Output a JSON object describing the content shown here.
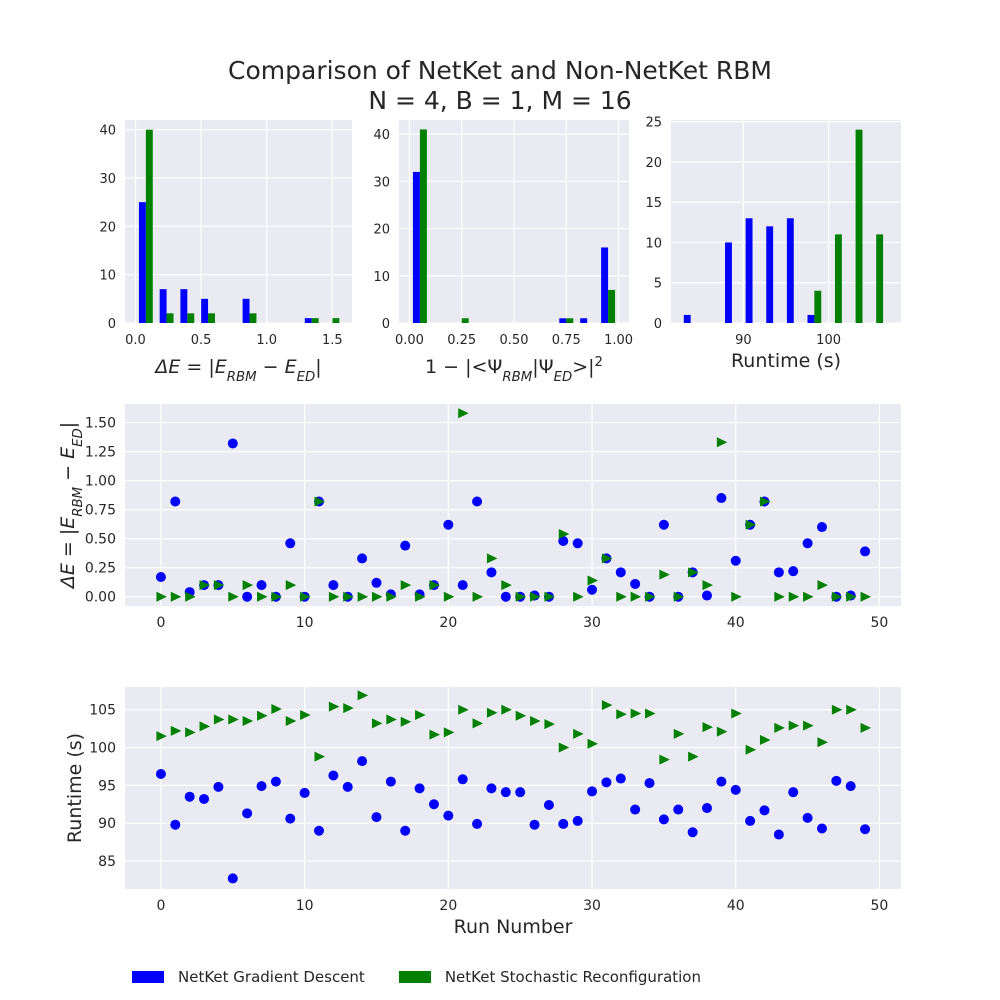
{
  "figure": {
    "title_line1": "Comparison of NetKet and Non-NetKet RBM",
    "title_line2": "N = 4, B = 1, M = 16",
    "background": "#ffffff",
    "axes_facecolor": "#eaeaf2",
    "grid_color": "#ffffff"
  },
  "legend": {
    "placement": "bottom-left",
    "items": [
      {
        "label": "NetKet Gradient Descent",
        "color": "#0000ff"
      },
      {
        "label": "NetKet Stochastic Reconfiguration",
        "color": "#008000"
      }
    ]
  },
  "chart_data": [
    {
      "type": "bar",
      "kind": "histogram",
      "title": "",
      "xlabel": "ΔE = |E_RBM − E_ED|",
      "xlabel_parts": [
        {
          "text": "ΔE = |E",
          "style": "italic"
        },
        {
          "text": "RBM",
          "style": "sub"
        },
        {
          "text": " − E",
          "style": "italic"
        },
        {
          "text": "ED",
          "style": "sub"
        },
        {
          "text": "|",
          "style": "italic"
        }
      ],
      "ylabel": "",
      "xlim": [
        -0.08,
        1.65
      ],
      "ylim": [
        0,
        42
      ],
      "xticks": [
        0.0,
        0.5,
        1.0,
        1.5
      ],
      "xtick_labels": [
        "0.0",
        "0.5",
        "1.0",
        "1.5"
      ],
      "yticks": [
        0,
        10,
        20,
        30,
        40
      ],
      "ytick_labels": [
        "0",
        "10",
        "20",
        "30",
        "40"
      ],
      "bin_edges": [
        0.0,
        0.158,
        0.316,
        0.474,
        0.632,
        0.79,
        0.948,
        1.106,
        1.264,
        1.422,
        1.58
      ],
      "series": [
        {
          "name": "NetKet Gradient Descent",
          "color": "#0000ff",
          "values": [
            25,
            7,
            7,
            5,
            0,
            5,
            0,
            0,
            1,
            0
          ]
        },
        {
          "name": "NetKet Stochastic Reconfiguration",
          "color": "#008000",
          "values": [
            40,
            2,
            2,
            2,
            0,
            2,
            0,
            0,
            1,
            1
          ]
        }
      ]
    },
    {
      "type": "bar",
      "kind": "histogram",
      "title": "",
      "xlabel": "1 − |<Ψ_RBM|Ψ_ED>|²",
      "xlabel_parts": [
        {
          "text": "1 − |<Ψ",
          "style": "normal"
        },
        {
          "text": "RBM",
          "style": "sub"
        },
        {
          "text": "|Ψ",
          "style": "normal"
        },
        {
          "text": "ED",
          "style": "sub"
        },
        {
          "text": ">|",
          "style": "normal"
        },
        {
          "text": "2",
          "style": "sup"
        }
      ],
      "ylabel": "",
      "xlim": [
        -0.05,
        1.05
      ],
      "ylim": [
        0,
        43
      ],
      "xticks": [
        0.0,
        0.25,
        0.5,
        0.75,
        1.0
      ],
      "xtick_labels": [
        "0.00",
        "0.25",
        "0.50",
        "0.75",
        "1.00"
      ],
      "yticks": [
        0,
        10,
        20,
        30,
        40
      ],
      "ytick_labels": [
        "0",
        "10",
        "20",
        "30",
        "40"
      ],
      "bin_edges": [
        0.0,
        0.1,
        0.2,
        0.3,
        0.4,
        0.5,
        0.6,
        0.7,
        0.8,
        0.9,
        1.0
      ],
      "series": [
        {
          "name": "NetKet Gradient Descent",
          "color": "#0000ff",
          "values": [
            32,
            0,
            0,
            0,
            0,
            0,
            0,
            1,
            1,
            16
          ]
        },
        {
          "name": "NetKet Stochastic Reconfiguration",
          "color": "#008000",
          "values": [
            41,
            0,
            1,
            0,
            0,
            0,
            0,
            1,
            0,
            7
          ]
        }
      ]
    },
    {
      "type": "bar",
      "kind": "histogram",
      "title": "",
      "xlabel": "Runtime (s)",
      "ylabel": "",
      "xlim": [
        81.5,
        108.5
      ],
      "ylim": [
        0,
        25.2
      ],
      "xticks": [
        90,
        100
      ],
      "xtick_labels": [
        "90",
        "100"
      ],
      "yticks": [
        0,
        5,
        10,
        15,
        20,
        25
      ],
      "ytick_labels": [
        "0",
        "5",
        "10",
        "15",
        "20",
        "25"
      ],
      "bin_edges": [
        82.6,
        85.02,
        87.44,
        89.86,
        92.28,
        94.7,
        97.12,
        99.54,
        101.96,
        104.38,
        106.8
      ],
      "series": [
        {
          "name": "NetKet Gradient Descent",
          "color": "#0000ff",
          "values": [
            1,
            0,
            10,
            13,
            12,
            13,
            1,
            0,
            0,
            0
          ]
        },
        {
          "name": "NetKet Stochastic Reconfiguration",
          "color": "#008000",
          "values": [
            0,
            0,
            0,
            0,
            0,
            0,
            4,
            11,
            24,
            11
          ]
        }
      ]
    },
    {
      "type": "scatter",
      "title": "",
      "xlabel": "",
      "ylabel": "ΔE = |E_RBM − E_ED|",
      "ylabel_parts": [
        {
          "text": "ΔE = |E",
          "style": "italic"
        },
        {
          "text": "RBM",
          "style": "sub"
        },
        {
          "text": " − E",
          "style": "italic"
        },
        {
          "text": "ED",
          "style": "sub"
        },
        {
          "text": "|",
          "style": "italic"
        }
      ],
      "xlim": [
        -2.5,
        51.5
      ],
      "ylim": [
        -0.08,
        1.66
      ],
      "xticks": [
        0,
        10,
        20,
        30,
        40,
        50
      ],
      "xtick_labels": [
        "0",
        "10",
        "20",
        "30",
        "40",
        "50"
      ],
      "yticks": [
        0.0,
        0.25,
        0.5,
        0.75,
        1.0,
        1.25,
        1.5
      ],
      "ytick_labels": [
        "0.00",
        "0.25",
        "0.50",
        "0.75",
        "1.00",
        "1.25",
        "1.50"
      ],
      "x": [
        0,
        1,
        2,
        3,
        4,
        5,
        6,
        7,
        8,
        9,
        10,
        11,
        12,
        13,
        14,
        15,
        16,
        17,
        18,
        19,
        20,
        21,
        22,
        23,
        24,
        25,
        26,
        27,
        28,
        29,
        30,
        31,
        32,
        33,
        34,
        35,
        36,
        37,
        38,
        39,
        40,
        41,
        42,
        43,
        44,
        45,
        46,
        47,
        48,
        49
      ],
      "series": [
        {
          "name": "NetKet Gradient Descent",
          "color": "#0000ff",
          "marker": "circle",
          "values": [
            0.17,
            0.82,
            0.04,
            0.1,
            0.1,
            1.32,
            0.0,
            0.1,
            0.0,
            0.46,
            0.0,
            0.82,
            0.1,
            0.0,
            0.33,
            0.12,
            0.02,
            0.44,
            0.02,
            0.1,
            0.62,
            0.1,
            0.82,
            0.21,
            0.0,
            0.0,
            0.01,
            0.0,
            0.48,
            0.46,
            0.06,
            0.33,
            0.21,
            0.11,
            0.0,
            0.62,
            0.0,
            0.21,
            0.01,
            0.85,
            0.31,
            0.62,
            0.82,
            0.21,
            0.22,
            0.46,
            0.6,
            0.0,
            0.01,
            0.39
          ]
        },
        {
          "name": "NetKet Stochastic Reconfiguration",
          "color": "#008000",
          "marker": "triangle-right",
          "values": [
            0.0,
            0.0,
            0.0,
            0.1,
            0.1,
            0.0,
            0.1,
            0.0,
            0.0,
            0.1,
            0.0,
            0.82,
            0.0,
            0.0,
            0.0,
            0.0,
            0.0,
            0.1,
            0.0,
            0.1,
            0.0,
            1.58,
            0.0,
            0.33,
            0.1,
            0.0,
            0.0,
            0.0,
            0.54,
            0.0,
            0.14,
            0.33,
            0.0,
            0.0,
            0.0,
            0.19,
            0.0,
            0.21,
            0.1,
            1.33,
            0.0,
            0.62,
            0.82,
            0.0,
            0.0,
            0.0,
            0.1,
            0.0,
            0.0,
            0.0
          ]
        }
      ]
    },
    {
      "type": "scatter",
      "title": "",
      "xlabel": "Run Number",
      "ylabel": "Runtime (s)",
      "xlim": [
        -2.5,
        51.5
      ],
      "ylim": [
        81.3,
        108.0
      ],
      "xticks": [
        0,
        10,
        20,
        30,
        40,
        50
      ],
      "xtick_labels": [
        "0",
        "10",
        "20",
        "30",
        "40",
        "50"
      ],
      "yticks": [
        85,
        90,
        95,
        100,
        105
      ],
      "ytick_labels": [
        "85",
        "90",
        "95",
        "100",
        "105"
      ],
      "x": [
        0,
        1,
        2,
        3,
        4,
        5,
        6,
        7,
        8,
        9,
        10,
        11,
        12,
        13,
        14,
        15,
        16,
        17,
        18,
        19,
        20,
        21,
        22,
        23,
        24,
        25,
        26,
        27,
        28,
        29,
        30,
        31,
        32,
        33,
        34,
        35,
        36,
        37,
        38,
        39,
        40,
        41,
        42,
        43,
        44,
        45,
        46,
        47,
        48,
        49
      ],
      "series": [
        {
          "name": "NetKet Gradient Descent",
          "color": "#0000ff",
          "marker": "circle",
          "values": [
            96.5,
            89.8,
            93.5,
            93.2,
            94.8,
            82.7,
            91.3,
            94.9,
            95.5,
            90.6,
            94.0,
            89.0,
            96.3,
            94.8,
            98.2,
            90.8,
            95.5,
            89.0,
            94.6,
            92.5,
            91.0,
            95.8,
            89.9,
            94.6,
            94.1,
            94.1,
            89.8,
            92.4,
            89.9,
            90.3,
            94.2,
            95.4,
            95.9,
            91.8,
            95.3,
            90.5,
            91.8,
            88.8,
            92.0,
            95.5,
            94.4,
            90.3,
            91.7,
            88.5,
            94.1,
            90.7,
            89.3,
            95.6,
            94.9,
            89.2
          ]
        },
        {
          "name": "NetKet Stochastic Reconfiguration",
          "color": "#008000",
          "marker": "triangle-right",
          "values": [
            101.5,
            102.2,
            102.0,
            102.8,
            103.7,
            103.7,
            103.5,
            104.2,
            105.1,
            103.5,
            104.3,
            98.8,
            105.4,
            105.2,
            106.9,
            103.2,
            103.7,
            103.4,
            104.3,
            101.7,
            102.0,
            105.0,
            103.2,
            104.6,
            105.0,
            104.2,
            103.5,
            103.1,
            100.0,
            101.8,
            100.5,
            105.6,
            104.4,
            104.5,
            104.5,
            98.4,
            101.8,
            98.8,
            102.7,
            102.1,
            104.5,
            99.7,
            101.0,
            102.6,
            102.9,
            102.9,
            100.7,
            105.0,
            105.0,
            102.6
          ]
        }
      ]
    }
  ]
}
